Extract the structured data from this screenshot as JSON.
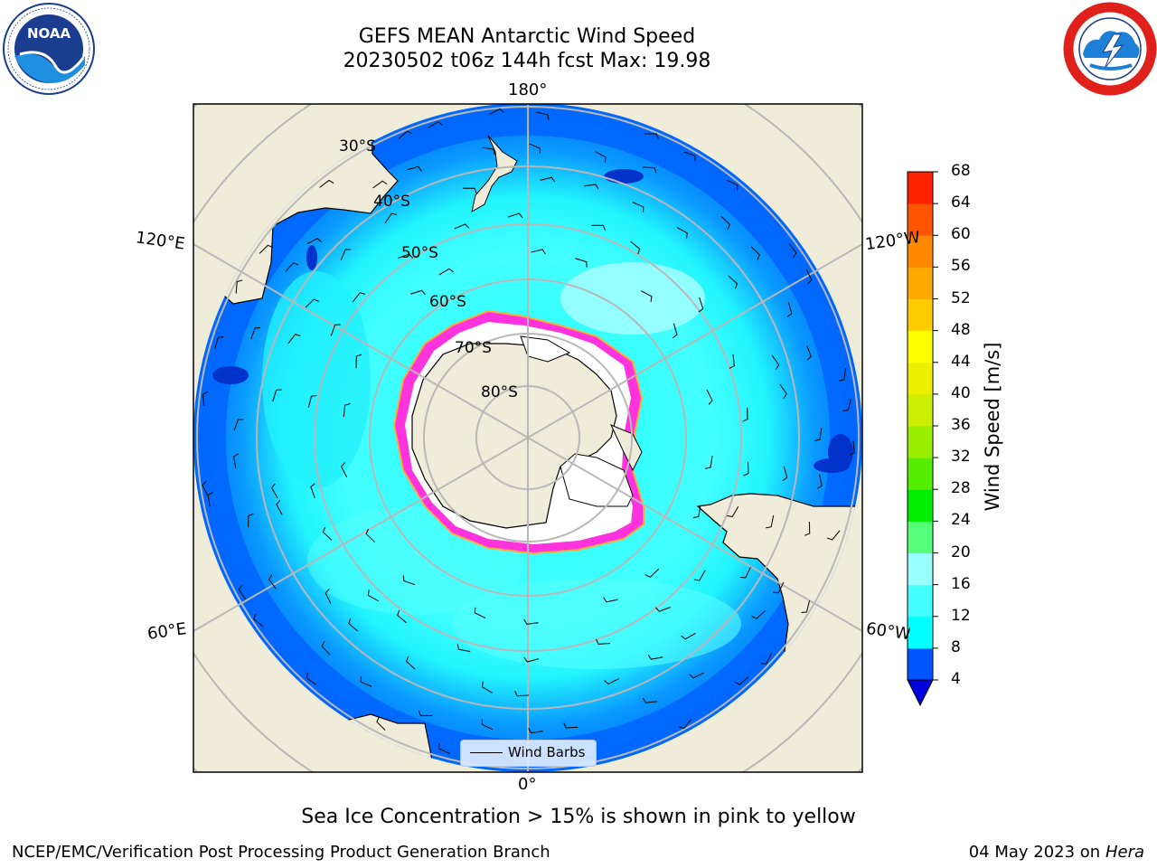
{
  "header": {
    "title_line1": "GEFS MEAN Antarctic Wind Speed",
    "title_line2": "20230502 t06z 144h fcst   Max: 19.98"
  },
  "logos": {
    "left": "noaa-logo",
    "left_text": "NOAA",
    "right": "national-weather-service-logo"
  },
  "map": {
    "projection": "south-polar-stereographic",
    "longitude_labels": {
      "top": "180°",
      "bottom": "0°",
      "left_upper": "120°E",
      "right_upper": "120°W",
      "left_lower": "60°E",
      "right_lower": "60°W"
    },
    "latitude_labels": [
      "30°S",
      "40°S",
      "50°S",
      "60°S",
      "70°S",
      "80°S"
    ],
    "colors": {
      "land": "#efecd9",
      "ice_sheet": "#ffffff",
      "sea_ice": "#ff33dd",
      "grid": "#b8b8b8"
    }
  },
  "legend": {
    "label": "Wind Barbs"
  },
  "colorbar": {
    "label": "Wind Speed [m/s]",
    "ticks": [
      "4",
      "8",
      "12",
      "16",
      "20",
      "24",
      "28",
      "32",
      "36",
      "40",
      "44",
      "48",
      "52",
      "56",
      "60",
      "64",
      "68"
    ],
    "colors": [
      "#0055ff",
      "#00ffff",
      "#44ffff",
      "#99ffff",
      "#55ff77",
      "#00ee00",
      "#55ee00",
      "#99ee00",
      "#ccee00",
      "#eeee00",
      "#ffff00",
      "#ffcc00",
      "#ffaa00",
      "#ff8800",
      "#ff5500",
      "#ff2200"
    ],
    "extend_color": "#0000dd"
  },
  "footer": {
    "caption": "Sea Ice Concentration > 15% is shown in pink to yellow",
    "left": "NCEP/EMC/Verification Post Processing Product Generation Branch",
    "right_date": "04 May 2023 on",
    "right_host": "Hera"
  }
}
